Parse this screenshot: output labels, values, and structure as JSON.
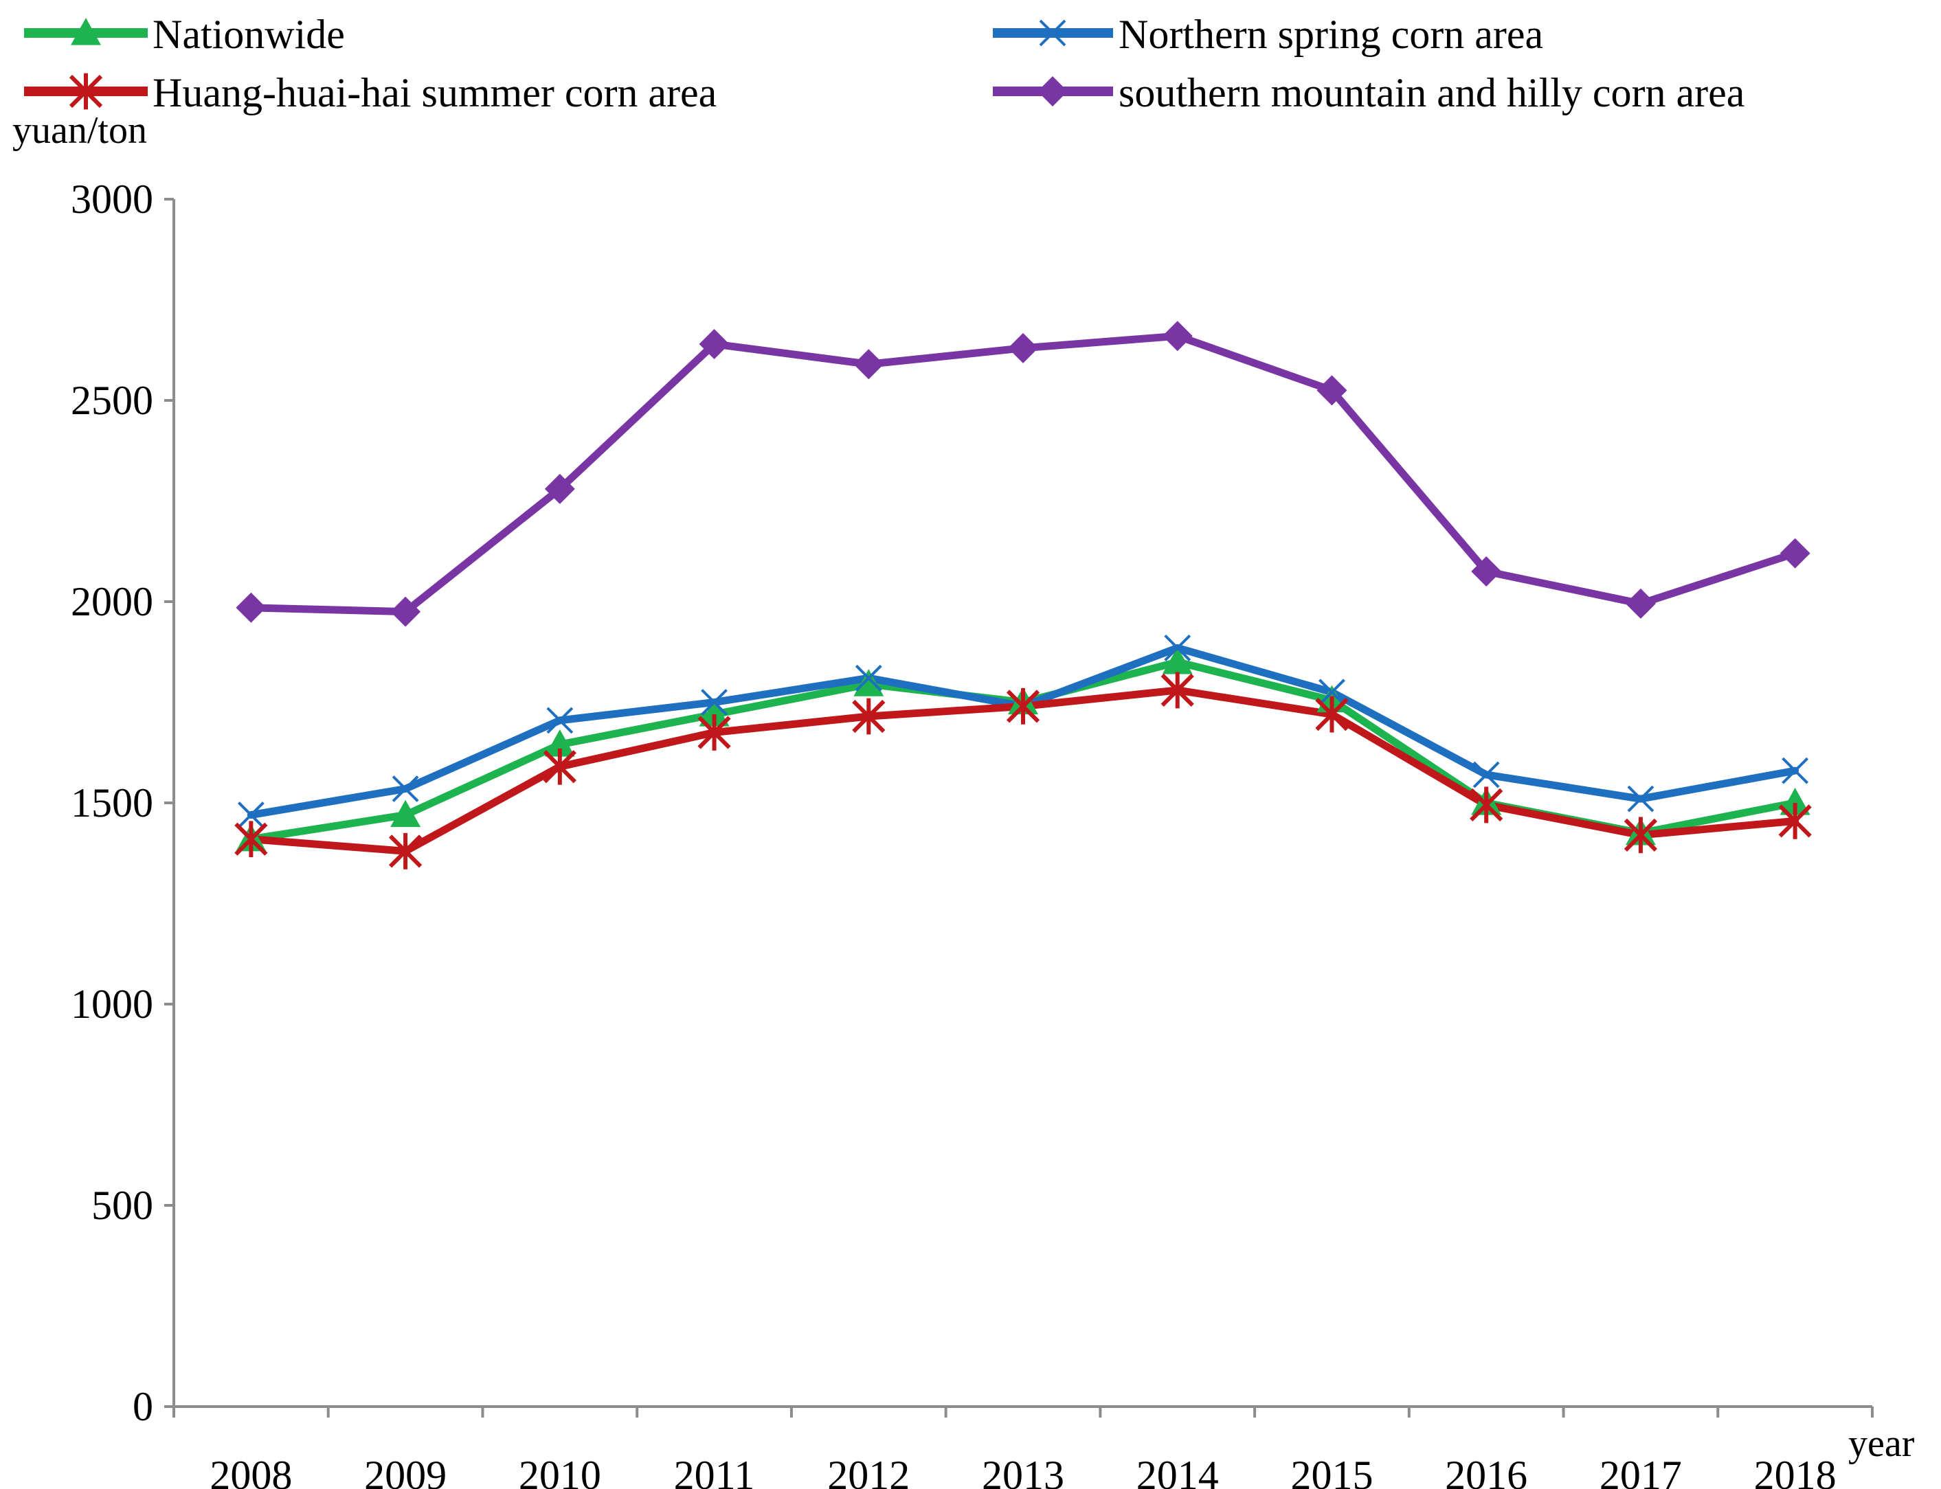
{
  "chart_data": {
    "type": "line",
    "title": "",
    "xlabel": "year",
    "ylabel": "yuan/ton",
    "ylim": [
      0,
      3000
    ],
    "yticks": [
      0,
      500,
      1000,
      1500,
      2000,
      2500,
      3000
    ],
    "grid": false,
    "legend_position": "top",
    "categories": [
      "2008",
      "2009",
      "2010",
      "2011",
      "2012",
      "2013",
      "2014",
      "2015",
      "2016",
      "2017",
      "2018"
    ],
    "series": [
      {
        "name": "Nationwide",
        "color": "#1db34e",
        "marker": "triangle",
        "values": [
          1410,
          1470,
          1645,
          1720,
          1795,
          1750,
          1850,
          1755,
          1500,
          1425,
          1500
        ]
      },
      {
        "name": "Northern spring corn area",
        "color": "#1f6fc0",
        "marker": "x",
        "values": [
          1470,
          1535,
          1705,
          1750,
          1810,
          1740,
          1885,
          1775,
          1570,
          1510,
          1580
        ]
      },
      {
        "name": "Huang-huai-hai summer corn area",
        "color": "#c0171b",
        "marker": "star",
        "values": [
          1410,
          1380,
          1590,
          1675,
          1715,
          1740,
          1780,
          1720,
          1495,
          1420,
          1455
        ]
      },
      {
        "name": "southern mountain and hilly corn area",
        "color": "#7a35a5",
        "marker": "diamond",
        "values": [
          1985,
          1975,
          2280,
          2640,
          2590,
          2630,
          2660,
          2525,
          2075,
          1995,
          2120
        ]
      }
    ]
  }
}
